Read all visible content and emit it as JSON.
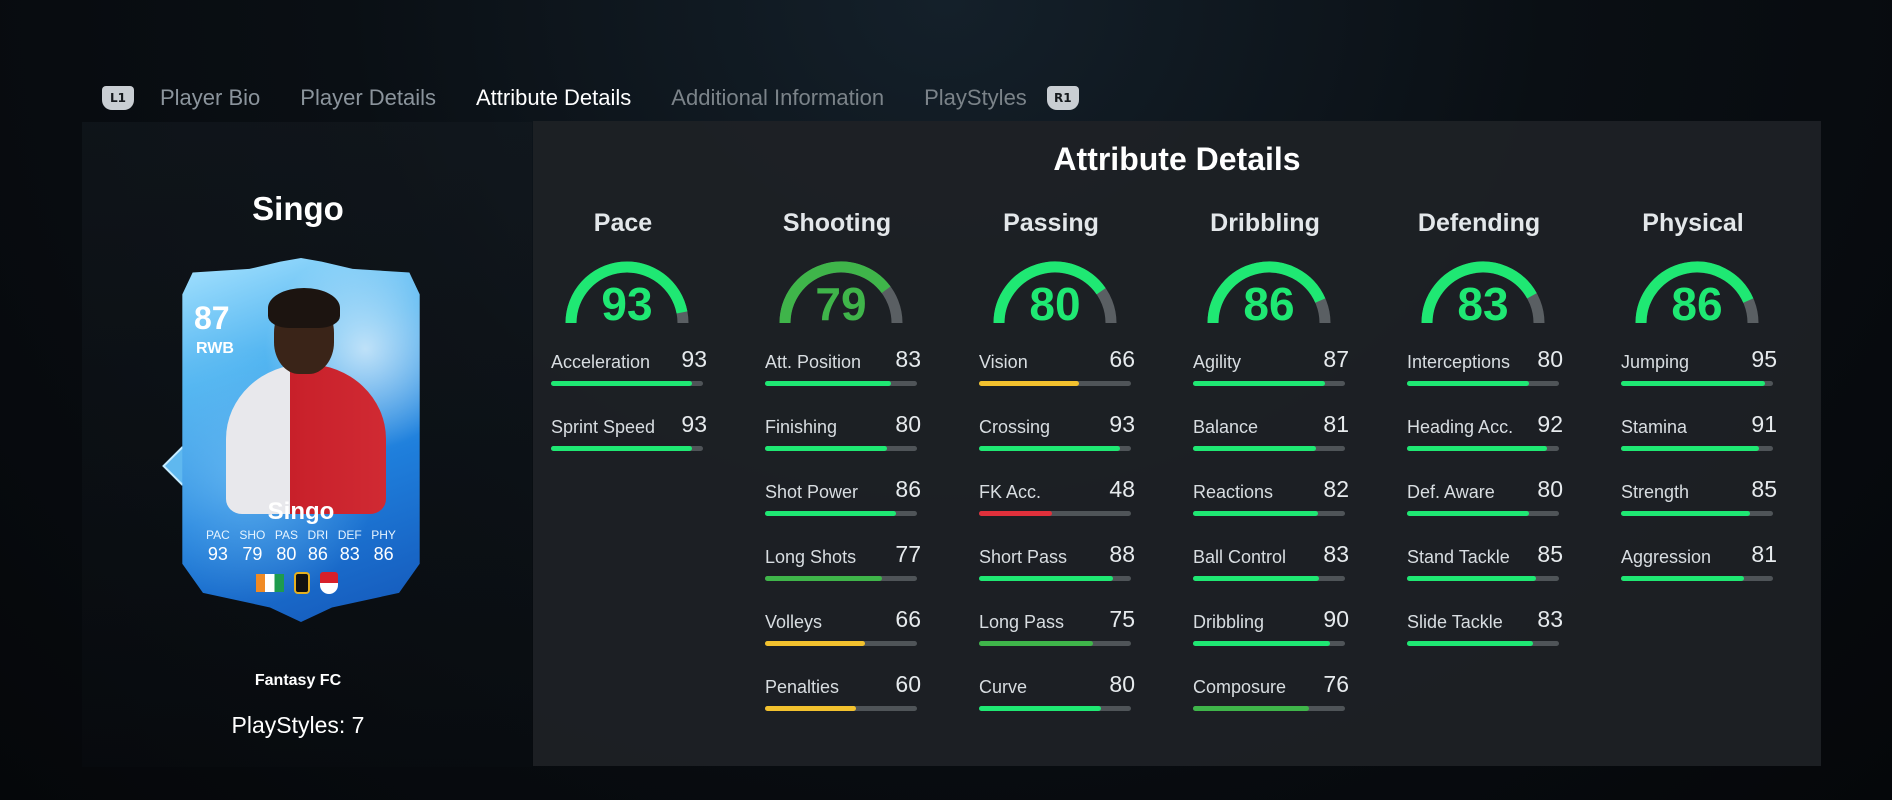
{
  "tabs": {
    "left_button": "L1",
    "right_button": "R1",
    "items": [
      {
        "label": "Player Bio",
        "state": "normal"
      },
      {
        "label": "Player Details",
        "state": "normal"
      },
      {
        "label": "Attribute Details",
        "state": "active"
      },
      {
        "label": "Additional Information",
        "state": "faded"
      },
      {
        "label": "PlayStyles",
        "state": "faded"
      }
    ]
  },
  "player": {
    "name": "Singo",
    "club": "Fantasy FC",
    "playstyles": "PlayStyles: 7"
  },
  "card": {
    "rating": "87",
    "position": "RWB",
    "name": "Singo",
    "stats": [
      {
        "label": "PAC",
        "value": "93"
      },
      {
        "label": "SHO",
        "value": "79"
      },
      {
        "label": "PAS",
        "value": "80"
      },
      {
        "label": "DRI",
        "value": "86"
      },
      {
        "label": "DEF",
        "value": "83"
      },
      {
        "label": "PHY",
        "value": "86"
      }
    ]
  },
  "panel": {
    "title": "Attribute Details",
    "categories": [
      {
        "name": "Pace",
        "value": 93,
        "stats": [
          {
            "label": "Acceleration",
            "value": 93
          },
          {
            "label": "Sprint Speed",
            "value": 93
          }
        ]
      },
      {
        "name": "Shooting",
        "value": 79,
        "stats": [
          {
            "label": "Att. Position",
            "value": 83
          },
          {
            "label": "Finishing",
            "value": 80
          },
          {
            "label": "Shot Power",
            "value": 86
          },
          {
            "label": "Long Shots",
            "value": 77
          },
          {
            "label": "Volleys",
            "value": 66
          },
          {
            "label": "Penalties",
            "value": 60
          }
        ]
      },
      {
        "name": "Passing",
        "value": 80,
        "stats": [
          {
            "label": "Vision",
            "value": 66
          },
          {
            "label": "Crossing",
            "value": 93
          },
          {
            "label": "FK Acc.",
            "value": 48
          },
          {
            "label": "Short Pass",
            "value": 88
          },
          {
            "label": "Long Pass",
            "value": 75
          },
          {
            "label": "Curve",
            "value": 80
          }
        ]
      },
      {
        "name": "Dribbling",
        "value": 86,
        "stats": [
          {
            "label": "Agility",
            "value": 87
          },
          {
            "label": "Balance",
            "value": 81
          },
          {
            "label": "Reactions",
            "value": 82
          },
          {
            "label": "Ball Control",
            "value": 83
          },
          {
            "label": "Dribbling",
            "value": 90
          },
          {
            "label": "Composure",
            "value": 76
          }
        ]
      },
      {
        "name": "Defending",
        "value": 83,
        "stats": [
          {
            "label": "Interceptions",
            "value": 80
          },
          {
            "label": "Heading Acc.",
            "value": 92
          },
          {
            "label": "Def. Aware",
            "value": 80
          },
          {
            "label": "Stand Tackle",
            "value": 85
          },
          {
            "label": "Slide Tackle",
            "value": 83
          }
        ]
      },
      {
        "name": "Physical",
        "value": 86,
        "stats": [
          {
            "label": "Jumping",
            "value": 95
          },
          {
            "label": "Stamina",
            "value": 91
          },
          {
            "label": "Strength",
            "value": 85
          },
          {
            "label": "Aggression",
            "value": 81
          }
        ]
      }
    ]
  },
  "colors": {
    "elite": "#1fe873",
    "good": "#3fb54a",
    "average": "#f2c12e",
    "poor": "#e0303b",
    "track": "#4f5458",
    "gauge_track": "#5a5f63"
  }
}
